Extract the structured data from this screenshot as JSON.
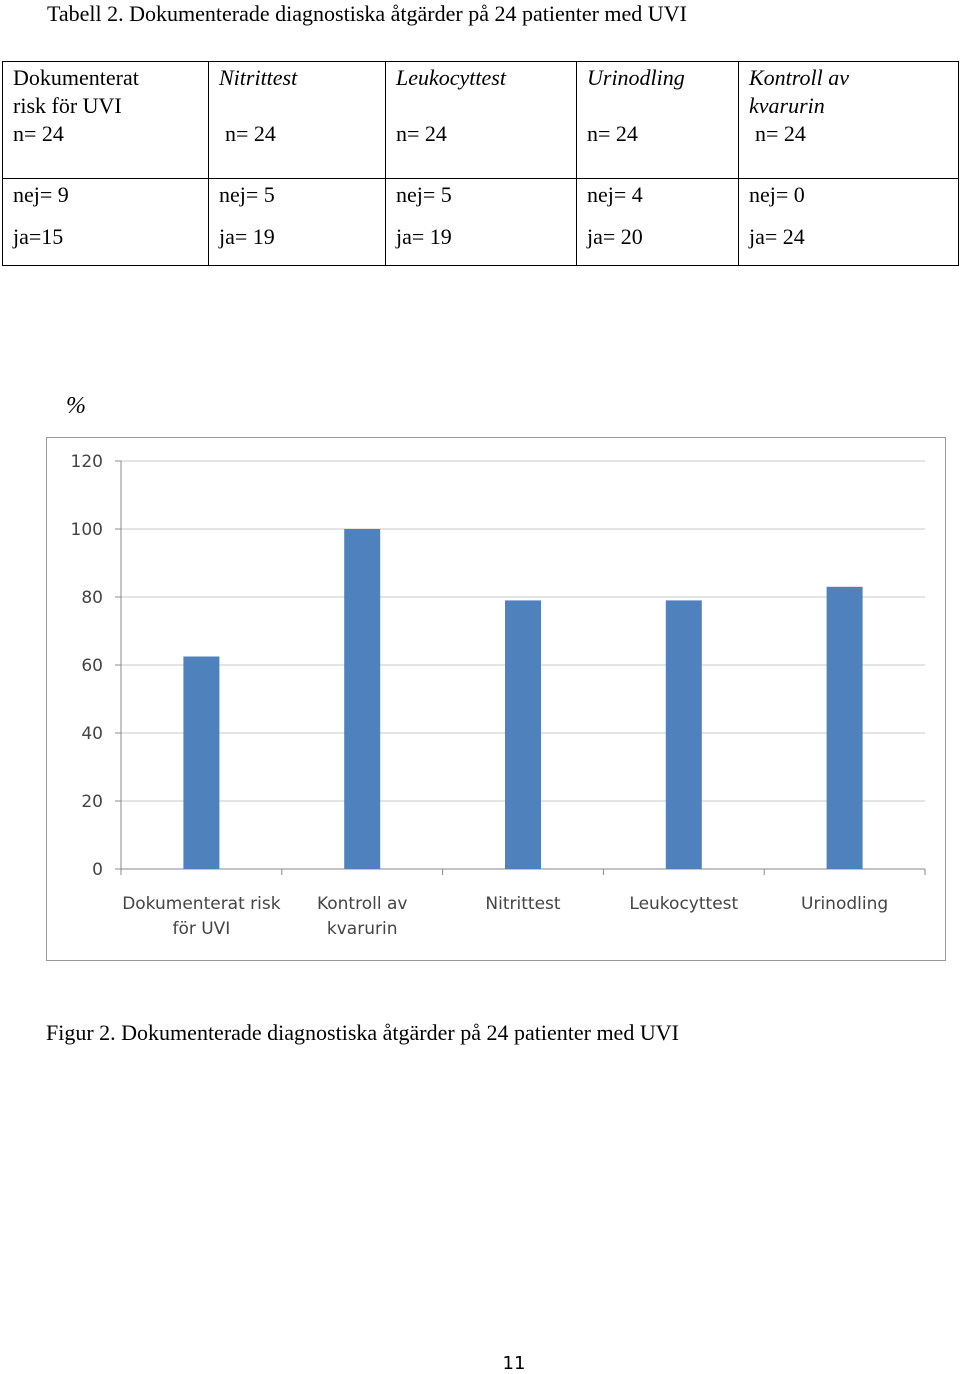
{
  "table": {
    "caption": "Tabell 2. Dokumenterade diagnostiska åtgärder på 24 patienter med UVI",
    "columns": [
      {
        "title_lines": [
          "Dokumenterat",
          "risk för UVI"
        ],
        "italic": false,
        "n": "n= 24",
        "nej": "nej= 9",
        "ja": "ja=15"
      },
      {
        "title_lines": [
          "Nitrittest"
        ],
        "italic": true,
        "n": "n= 24",
        "nej": "nej= 5",
        "ja": "ja= 19"
      },
      {
        "title_lines": [
          "Leukocyttest"
        ],
        "italic": true,
        "n": "n= 24",
        "nej": "nej= 5",
        "ja": "ja= 19"
      },
      {
        "title_lines": [
          "Urinodling"
        ],
        "italic": true,
        "n": "n= 24",
        "nej": "nej= 4",
        "ja": "ja= 20"
      },
      {
        "title_lines": [
          "Kontroll av",
          "kvarurin"
        ],
        "italic": true,
        "n": "n= 24",
        "nej": "nej= 0",
        "ja": "ja= 24"
      }
    ]
  },
  "chart": {
    "y_unit_label": "%"
  },
  "chart_data": {
    "type": "bar",
    "categories": [
      [
        "Dokumenterat risk",
        "för UVI"
      ],
      [
        "Kontroll av",
        "kvarurin"
      ],
      [
        "Nitrittest"
      ],
      [
        "Leukocyttest"
      ],
      [
        "Urinodling"
      ]
    ],
    "values": [
      62.5,
      100,
      79,
      79,
      83
    ],
    "ylim": [
      0,
      120
    ],
    "yticks": [
      0,
      20,
      40,
      60,
      80,
      100,
      120
    ],
    "grid": true,
    "legend": "none",
    "bar_color": "#4f81bd",
    "grid_color": "#c8c8c8",
    "ylabel": "%"
  },
  "figure_caption": "Figur 2. Dokumenterade diagnostiska åtgärder på 24 patienter med UVI",
  "page_number": "11"
}
